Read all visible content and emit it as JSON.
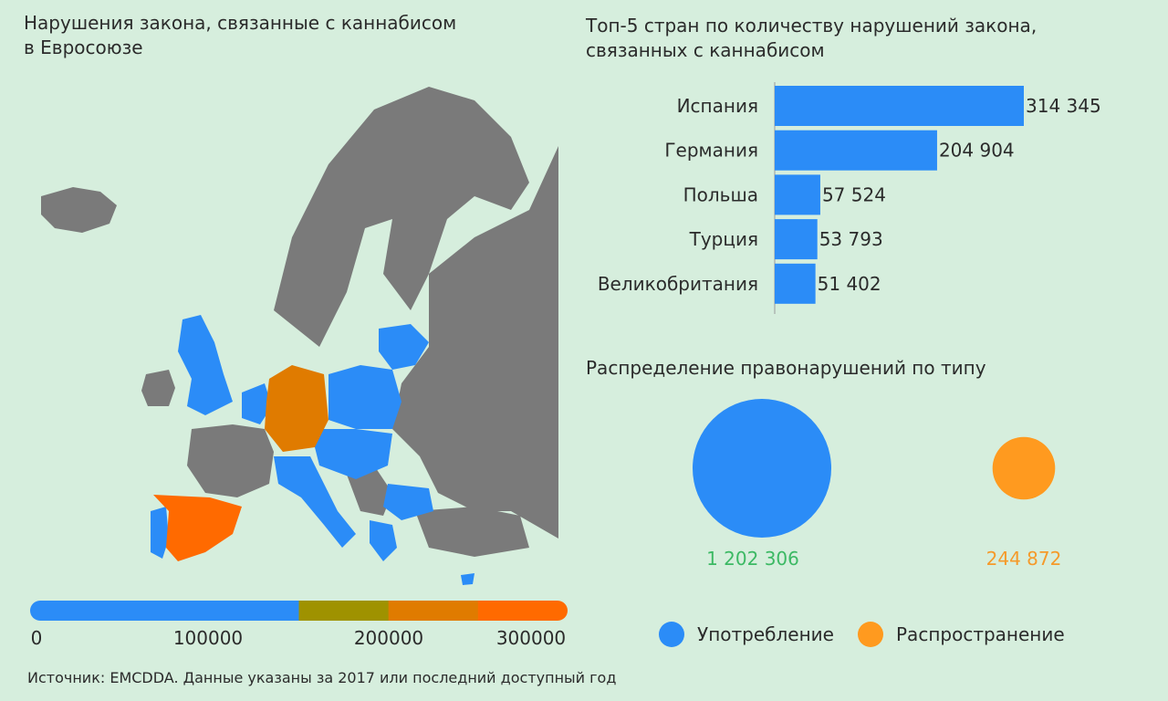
{
  "map_title": "Нарушения закона, связанные с каннабисом\nв Евросоюзе",
  "bar_title": "Топ-5 стран по количеству нарушений закона,\nсвязанных с каннабисом",
  "bubble_title": "Распределение правонарушений по типу",
  "source_note": "Источник: EMCDDA. Данные указаны за 2017 или последний доступный год",
  "colors": {
    "background": "#d6eedd",
    "non_eu": "#7a7a7a",
    "low": "#2b8cf7",
    "mid": "#9f9200",
    "high1": "#e07b00",
    "high2": "#ff6a00",
    "bar": "#2b8cf7",
    "consumption": "#2b8cf7",
    "distribution": "#ff9a1f",
    "consumption_text": "#3cb964",
    "distribution_text": "#f59a2a"
  },
  "chart_data": [
    {
      "type": "map",
      "title": "Нарушения закона, связанные с каннабисом\nв Евросоюзе",
      "color_scale": {
        "ticks": [
          "0",
          "100000",
          "200000",
          "300000"
        ],
        "range": [
          0,
          300000
        ],
        "stops": [
          {
            "from": 0,
            "to": 150000,
            "color": "#2b8cf7"
          },
          {
            "from": 150000,
            "to": 200000,
            "color": "#9f9200"
          },
          {
            "from": 200000,
            "to": 250000,
            "color": "#e07b00"
          },
          {
            "from": 250000,
            "to": 300000,
            "color": "#ff6a00"
          }
        ]
      },
      "highlighted_regions": [
        {
          "name": "Испания",
          "color": "#ff6a00"
        },
        {
          "name": "Германия",
          "color": "#e07b00"
        }
      ]
    },
    {
      "type": "bar",
      "orientation": "horizontal",
      "title": "Топ-5 стран по количеству нарушений закона,\nсвязанных с каннабисом",
      "categories": [
        "Испания",
        "Германия",
        "Польша",
        "Турция",
        "Великобритания"
      ],
      "values": [
        314345,
        204904,
        57524,
        53793,
        51402
      ],
      "value_labels": [
        "314 345",
        "204 904",
        "57 524",
        "53 793",
        "51 402"
      ],
      "xlim": [
        0,
        314345
      ]
    },
    {
      "type": "bubble",
      "title": "Распределение правонарушений по типу",
      "series": [
        {
          "name": "Употребление",
          "value": 1202306,
          "label": "1 202 306"
        },
        {
          "name": "Распространение",
          "value": 244872,
          "label": "244 872"
        }
      ]
    }
  ]
}
